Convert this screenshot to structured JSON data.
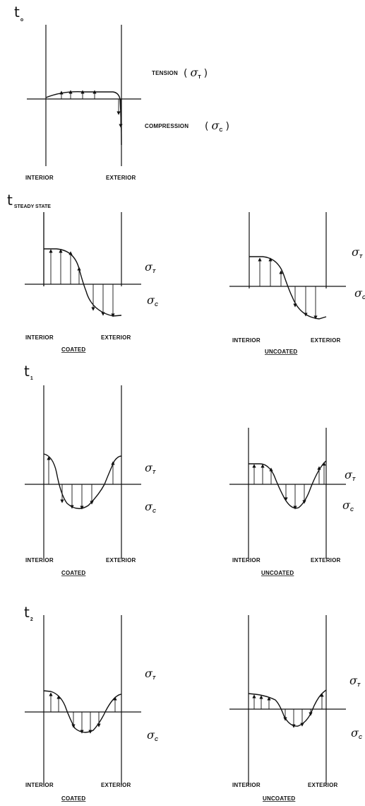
{
  "times": {
    "t0": {
      "t": "t",
      "sub": "o"
    },
    "tss": {
      "t": "t",
      "sub": "STEADY STATE"
    },
    "t1": {
      "t": "t",
      "sub": "1"
    },
    "t2": {
      "t": "t",
      "sub": "2"
    }
  },
  "legend": {
    "tension": "TENSION",
    "compression": "COMPRESSION"
  },
  "sigma": {
    "symbol": "σ",
    "tension_sub": "T",
    "compression_sub": "C"
  },
  "labels": {
    "interior": "INTERIOR",
    "exterior": "EXTERIOR",
    "coated": "COATED",
    "uncoated": "UNCOATED"
  }
}
